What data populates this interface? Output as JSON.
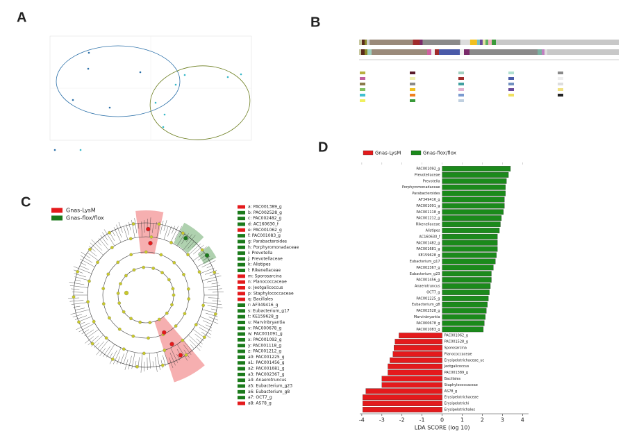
{
  "panels": [
    "A",
    "B",
    "C",
    "D"
  ],
  "cladogram": {
    "legend": [
      {
        "name": "Gnas-LysM",
        "color": "#e41a1c"
      },
      {
        "name": "Gnas-flox/flox",
        "color": "#1b7a1b"
      }
    ],
    "clades": [
      {
        "text": "a: PAC001389_g",
        "color": "#e41a1c"
      },
      {
        "text": "b: PAC002528_g",
        "color": "#1b7a1b"
      },
      {
        "text": "c: PAC002482_g",
        "color": "#1b7a1b"
      },
      {
        "text": "d: AC160630_f",
        "color": "#1b7a1b"
      },
      {
        "text": "e: PAC001062_g",
        "color": "#e41a1c"
      },
      {
        "text": "f: PAC001083_g",
        "color": "#1b7a1b"
      },
      {
        "text": "g: Parabacteroides",
        "color": "#1b7a1b"
      },
      {
        "text": "h: Porphyromonadaceae",
        "color": "#1b7a1b"
      },
      {
        "text": "i: Prevotella",
        "color": "#1b7a1b"
      },
      {
        "text": "j: Prevotellaceae",
        "color": "#1b7a1b"
      },
      {
        "text": "k: Alistipes",
        "color": "#1b7a1b"
      },
      {
        "text": "l: Rikenellaceae",
        "color": "#1b7a1b"
      },
      {
        "text": "m: Sporosarcina",
        "color": "#e41a1c"
      },
      {
        "text": "n: Planococcaceae",
        "color": "#e41a1c"
      },
      {
        "text": "o: Jeotgalicoccus",
        "color": "#e41a1c"
      },
      {
        "text": "p: Staphylococcaceae",
        "color": "#e41a1c"
      },
      {
        "text": "q: Bacillales",
        "color": "#e41a1c"
      },
      {
        "text": "r: AF349416_g",
        "color": "#1b7a1b"
      },
      {
        "text": "s: Eubacterium_g17",
        "color": "#1b7a1b"
      },
      {
        "text": "t: KE159628_g",
        "color": "#1b7a1b"
      },
      {
        "text": "u: Marvinbryantia",
        "color": "#1b7a1b"
      },
      {
        "text": "v: PAC000678_g",
        "color": "#1b7a1b"
      },
      {
        "text": "w: PAC001091_g",
        "color": "#1b7a1b"
      },
      {
        "text": "x: PAC001092_g",
        "color": "#1b7a1b"
      },
      {
        "text": "y: PAC001118_g",
        "color": "#1b7a1b"
      },
      {
        "text": "z: PAC001212_g",
        "color": "#1b7a1b"
      },
      {
        "text": "a0: PAC001225_g",
        "color": "#1b7a1b"
      },
      {
        "text": "a1: PAC001456_g",
        "color": "#1b7a1b"
      },
      {
        "text": "a2: PAC001681_g",
        "color": "#1b7a1b"
      },
      {
        "text": "a3: PAC002367_g",
        "color": "#1b7a1b"
      },
      {
        "text": "a4: Anaerotruncus",
        "color": "#1b7a1b"
      },
      {
        "text": "a5: Eubacterium_g23",
        "color": "#1b7a1b"
      },
      {
        "text": "a6: Eubacterium_g8",
        "color": "#1b7a1b"
      },
      {
        "text": "a7: OCT7_g",
        "color": "#1b7a1b"
      },
      {
        "text": "a8: AS78_g",
        "color": "#e41a1c"
      }
    ]
  },
  "chart_data": {
    "type": "hbar",
    "xlabel": "LDA SCORE (log 10)",
    "xlim": [
      -4.1,
      4.3
    ],
    "xticks": [
      -4,
      -3,
      -2,
      -1,
      0,
      1,
      2,
      3,
      4
    ],
    "series": [
      {
        "name": "Gnas-flox/flox",
        "color": "#1b8a1b",
        "categories": [
          "PAC001092_g",
          "Prevotellaceae",
          "Prevotella",
          "Porphyromonadaceae",
          "Parabacteroides",
          "AF349416_g",
          "PAC001091_g",
          "PAC001118_g",
          "PAC001212_g",
          "Rikenellaceae",
          "Alistipes",
          "AC160630_f",
          "PAC001482_g",
          "PAC001681_g",
          "KE159628_g",
          "Eubacterium_g17",
          "PAC002367_g",
          "Eubacterium_g23",
          "PAC001456_g",
          "Anaerotruncus",
          "OCT7_g",
          "PAC001225_g",
          "Eubacterium_g8",
          "PAC002528_g",
          "Marvinbryantia",
          "PAC000678_g",
          "PAC001083_g"
        ],
        "values": [
          3.4,
          3.3,
          3.2,
          3.15,
          3.15,
          3.1,
          3.1,
          3.05,
          2.95,
          2.9,
          2.85,
          2.75,
          2.75,
          2.75,
          2.7,
          2.65,
          2.55,
          2.45,
          2.45,
          2.4,
          2.35,
          2.3,
          2.25,
          2.2,
          2.15,
          2.1,
          2.05
        ]
      },
      {
        "name": "Gnas-LysM",
        "color": "#e41a1c",
        "categories": [
          "PAC001062_g",
          "PAC001528_g",
          "Sporosarcina",
          "Planococcaceae",
          "Erysipelotrichaceae_uc",
          "Jeotgalicoccus",
          "PAC001389_g",
          "Bacillales",
          "Staphylococcaceae",
          "AS78_g",
          "Erysipelotrichaceae",
          "Erysipelotrichi",
          "Erysipelotrichales"
        ],
        "values": [
          -2.15,
          -2.35,
          -2.4,
          -2.45,
          -2.6,
          -2.7,
          -2.7,
          -3.0,
          -3.0,
          -3.8,
          -3.95,
          -3.95,
          -3.95
        ]
      }
    ]
  }
}
